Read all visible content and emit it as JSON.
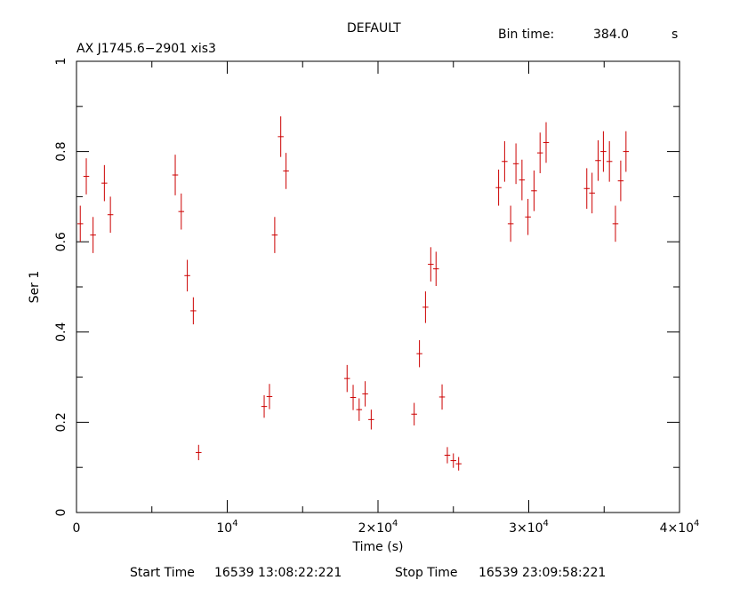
{
  "chart_data": {
    "type": "scatter",
    "title": "DEFAULT",
    "subtitle": "AX J1745.6−2901 xis3",
    "bin_time_label": "Bin time:",
    "bin_time_value": "384.0",
    "bin_time_unit": "s",
    "xlabel": "Time (s)",
    "ylabel": "Ser 1",
    "xlim": [
      0,
      40000
    ],
    "ylim": [
      0,
      1
    ],
    "x_ticks": [
      {
        "value": 0,
        "mant": "0",
        "exp": ""
      },
      {
        "value": 10000,
        "mant": "10",
        "exp": "4"
      },
      {
        "value": 20000,
        "mant": "2×10",
        "exp": "4"
      },
      {
        "value": 30000,
        "mant": "3×10",
        "exp": "4"
      },
      {
        "value": 40000,
        "mant": "4×10",
        "exp": "4"
      }
    ],
    "y_ticks": [
      {
        "value": 0,
        "label": "0"
      },
      {
        "value": 0.2,
        "label": "0.2"
      },
      {
        "value": 0.4,
        "label": "0.4"
      },
      {
        "value": 0.6,
        "label": "0.6"
      },
      {
        "value": 0.8,
        "label": "0.8"
      },
      {
        "value": 1,
        "label": "1"
      }
    ],
    "series": [
      {
        "color": "#cc0000",
        "xerr": 192,
        "points": [
          [
            250,
            0.64,
            0.04
          ],
          [
            650,
            0.745,
            0.04
          ],
          [
            1100,
            0.615,
            0.04
          ],
          [
            1850,
            0.73,
            0.04
          ],
          [
            2250,
            0.66,
            0.04
          ],
          [
            6550,
            0.748,
            0.045
          ],
          [
            6950,
            0.667,
            0.04
          ],
          [
            7350,
            0.525,
            0.035
          ],
          [
            7750,
            0.447,
            0.03
          ],
          [
            8100,
            0.133,
            0.017
          ],
          [
            12450,
            0.235,
            0.025
          ],
          [
            12800,
            0.257,
            0.028
          ],
          [
            13150,
            0.615,
            0.04
          ],
          [
            13550,
            0.833,
            0.045
          ],
          [
            13900,
            0.757,
            0.04
          ],
          [
            17950,
            0.297,
            0.03
          ],
          [
            18350,
            0.255,
            0.028
          ],
          [
            18750,
            0.228,
            0.025
          ],
          [
            19150,
            0.263,
            0.028
          ],
          [
            19550,
            0.206,
            0.022
          ],
          [
            22400,
            0.218,
            0.025
          ],
          [
            22750,
            0.352,
            0.03
          ],
          [
            23150,
            0.455,
            0.035
          ],
          [
            23500,
            0.55,
            0.038
          ],
          [
            23850,
            0.54,
            0.038
          ],
          [
            24250,
            0.256,
            0.028
          ],
          [
            24600,
            0.127,
            0.018
          ],
          [
            25000,
            0.115,
            0.016
          ],
          [
            25350,
            0.108,
            0.015
          ],
          [
            28000,
            0.72,
            0.04
          ],
          [
            28400,
            0.778,
            0.045
          ],
          [
            28800,
            0.64,
            0.04
          ],
          [
            29150,
            0.773,
            0.045
          ],
          [
            29550,
            0.737,
            0.045
          ],
          [
            29950,
            0.655,
            0.04
          ],
          [
            30350,
            0.713,
            0.045
          ],
          [
            30750,
            0.797,
            0.045
          ],
          [
            31150,
            0.82,
            0.045
          ],
          [
            33850,
            0.718,
            0.045
          ],
          [
            34200,
            0.708,
            0.045
          ],
          [
            34600,
            0.78,
            0.045
          ],
          [
            34950,
            0.8,
            0.045
          ],
          [
            35350,
            0.778,
            0.045
          ],
          [
            35750,
            0.64,
            0.04
          ],
          [
            36100,
            0.735,
            0.045
          ],
          [
            36450,
            0.8,
            0.045
          ]
        ]
      }
    ]
  },
  "footer": {
    "start_label": "Start Time",
    "start_value": "16539 13:08:22:221",
    "stop_label": "Stop Time",
    "stop_value": "16539 23:09:58:221"
  }
}
